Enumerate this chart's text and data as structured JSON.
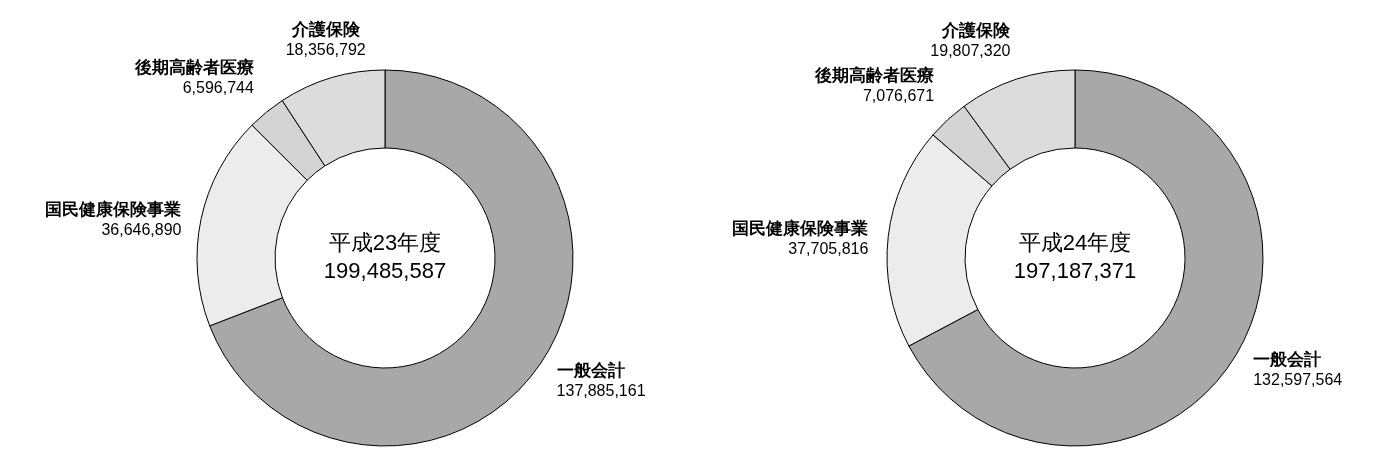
{
  "chart_data": [
    {
      "type": "donut",
      "title": "平成23年度",
      "annotations": [
        "199,485,587"
      ],
      "categories": [
        "一般会計",
        "国民健康保険事業",
        "後期高齢者医療",
        "介護保険"
      ],
      "values": [
        137885161,
        36646890,
        6596744,
        18356792
      ],
      "colors": [
        "#a8a8a8",
        "#ececec",
        "#d4d4d4",
        "#dcdcdc"
      ],
      "value_labels": [
        "137,885,161",
        "36,646,890",
        "6,596,744",
        "18,356,792"
      ]
    },
    {
      "type": "donut",
      "title": "平成24年度",
      "annotations": [
        "197,187,371"
      ],
      "categories": [
        "一般会計",
        "国民健康保険事業",
        "後期高齢者医療",
        "介護保険"
      ],
      "values": [
        132597564,
        37705816,
        7076671,
        19807320
      ],
      "colors": [
        "#a8a8a8",
        "#ececec",
        "#d4d4d4",
        "#dcdcdc"
      ],
      "value_labels": [
        "132,597,564",
        "37,705,816",
        "7,076,671",
        "19,807,320"
      ]
    }
  ]
}
